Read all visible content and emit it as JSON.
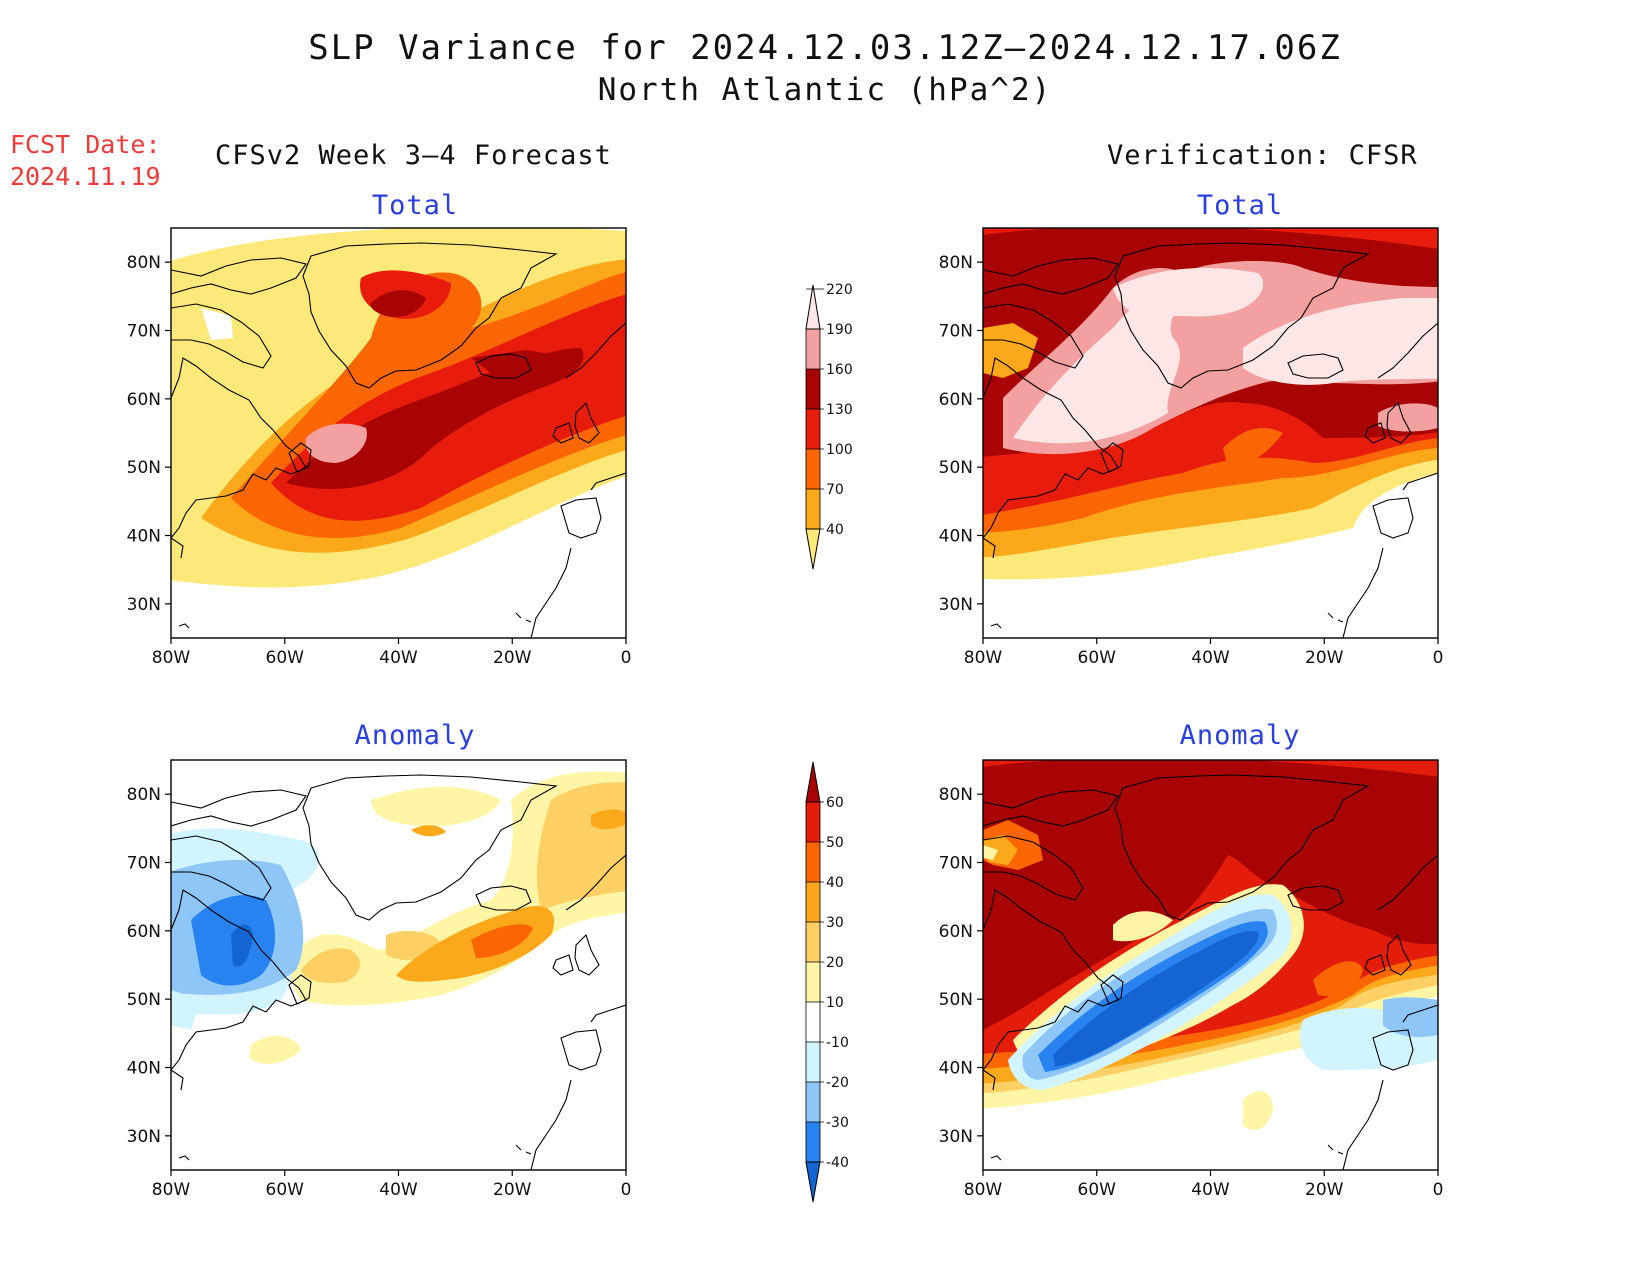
{
  "header": {
    "title_line1": "SLP Variance for 2024.12.03.12Z–2024.12.17.06Z",
    "title_line2": "North Atlantic (hPa^2)",
    "fcst_label": "FCST Date:",
    "fcst_date": "2024.11.19"
  },
  "columns": {
    "left": "CFSv2 Week 3–4 Forecast",
    "right": "Verification: CFSR"
  },
  "panels": {
    "top_left": "Total",
    "top_right": "Total",
    "bottom_left": "Anomaly",
    "bottom_right": "Anomaly"
  },
  "axes": {
    "lat_labels": [
      "80N",
      "70N",
      "60N",
      "50N",
      "40N",
      "30N"
    ],
    "lon_labels": [
      "80W",
      "60W",
      "40W",
      "20W",
      "0"
    ]
  },
  "colorbars": {
    "total": {
      "levels": [
        "40",
        "70",
        "100",
        "130",
        "160",
        "190",
        "220"
      ],
      "colors": [
        "#fde87a",
        "#fba81a",
        "#fb6604",
        "#e81c0c",
        "#a80404",
        "#f2a0a0",
        "#fde6e6"
      ]
    },
    "anomaly": {
      "levels": [
        "-40",
        "-30",
        "-20",
        "-10",
        "10",
        "20",
        "30",
        "40",
        "50",
        "60"
      ],
      "colors": [
        "#1464d2",
        "#2882f0",
        "#8ec6f8",
        "#d2f4fe",
        "#ffffff",
        "#fef6a6",
        "#fdd065",
        "#fba61c",
        "#fb6604",
        "#e41c0c",
        "#a80404"
      ]
    }
  }
}
